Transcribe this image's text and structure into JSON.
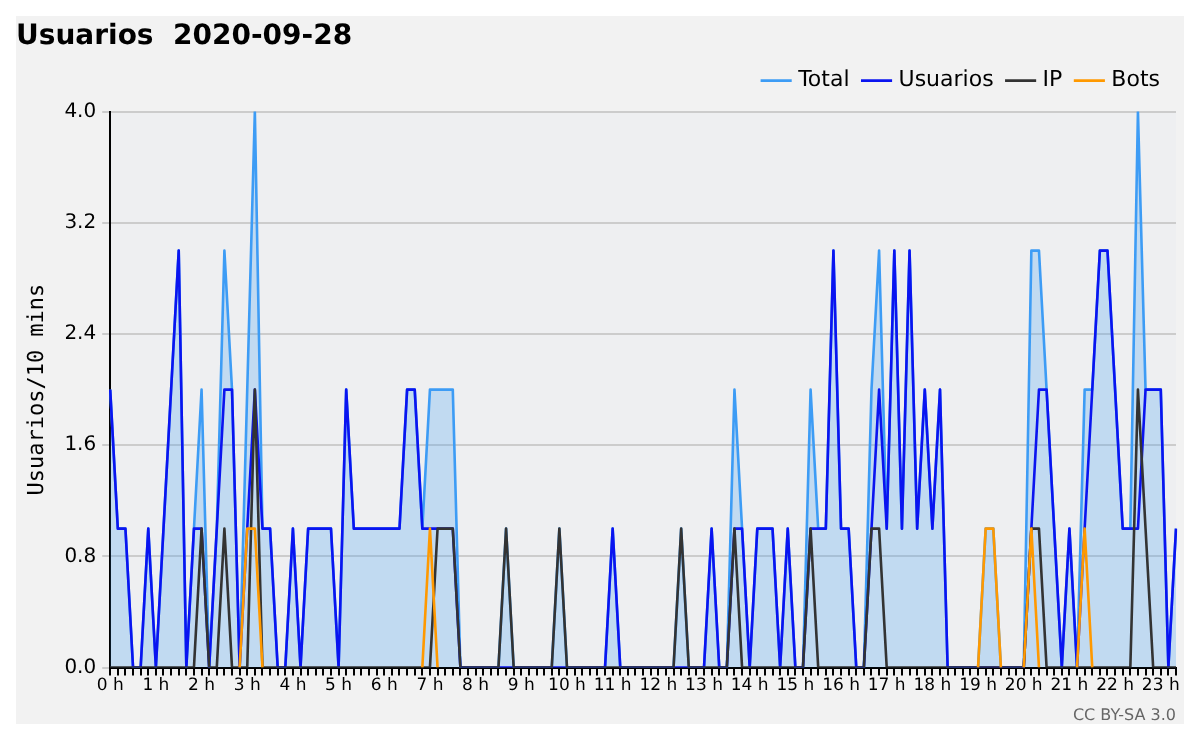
{
  "chart_data": {
    "type": "line",
    "title": "Usuarios  2020-09-28",
    "ylabel": "Usuarios/10 mins",
    "categories": [
      "0 h",
      null,
      null,
      null,
      null,
      null,
      "1 h",
      null,
      null,
      null,
      null,
      null,
      "2 h",
      null,
      null,
      null,
      null,
      null,
      "3 h",
      null,
      null,
      null,
      null,
      null,
      "4 h",
      null,
      null,
      null,
      null,
      null,
      "5 h",
      null,
      null,
      null,
      null,
      null,
      "6 h",
      null,
      null,
      null,
      null,
      null,
      "7 h",
      null,
      null,
      null,
      null,
      null,
      "8 h",
      null,
      null,
      null,
      null,
      null,
      "9 h",
      null,
      null,
      null,
      null,
      null,
      "10 h",
      null,
      null,
      null,
      null,
      null,
      "11 h",
      null,
      null,
      null,
      null,
      null,
      "12 h",
      null,
      null,
      null,
      null,
      null,
      "13 h",
      null,
      null,
      null,
      null,
      null,
      "14 h",
      null,
      null,
      null,
      null,
      null,
      "15 h",
      null,
      null,
      null,
      null,
      null,
      "16 h",
      null,
      null,
      null,
      null,
      null,
      "17 h",
      null,
      null,
      null,
      null,
      null,
      "18 h",
      null,
      null,
      null,
      null,
      null,
      "19 h",
      null,
      null,
      null,
      null,
      null,
      "20 h",
      null,
      null,
      null,
      null,
      null,
      "21 h",
      null,
      null,
      null,
      null,
      null,
      "22 h",
      null,
      null,
      null,
      null,
      null,
      "23 h",
      null,
      null
    ],
    "series": [
      {
        "name": "Total",
        "type": "area",
        "color": "#3d9cf5",
        "values": [
          2,
          1,
          1,
          0,
          0,
          1,
          0,
          1,
          2,
          3,
          0,
          1,
          2,
          0,
          1,
          3,
          2,
          0,
          2,
          4,
          1,
          1,
          0,
          0,
          1,
          0,
          1,
          1,
          1,
          1,
          0,
          2,
          1,
          1,
          1,
          1,
          1,
          1,
          1,
          2,
          2,
          1,
          2,
          2,
          2,
          2,
          0,
          0,
          0,
          0,
          0,
          0,
          1,
          0,
          0,
          0,
          0,
          0,
          0,
          1,
          0,
          0,
          0,
          0,
          0,
          0,
          1,
          0,
          0,
          0,
          0,
          0,
          0,
          0,
          0,
          1,
          0,
          0,
          0,
          1,
          0,
          0,
          2,
          1,
          0,
          1,
          1,
          1,
          0,
          1,
          0,
          0,
          2,
          1,
          1,
          3,
          1,
          1,
          0,
          0,
          2,
          3,
          1,
          3,
          1,
          3,
          1,
          2,
          1,
          2,
          0,
          0,
          0,
          0,
          0,
          1,
          1,
          0,
          0,
          0,
          0,
          3,
          3,
          2,
          1,
          0,
          1,
          0,
          2,
          2,
          3,
          3,
          2,
          1,
          1,
          4,
          2,
          2,
          2,
          0,
          1
        ]
      },
      {
        "name": "Usuarios",
        "color": "#0a14f0",
        "values": [
          2,
          1,
          1,
          0,
          0,
          1,
          0,
          1,
          2,
          3,
          0,
          1,
          1,
          0,
          1,
          2,
          2,
          0,
          1,
          2,
          1,
          1,
          0,
          0,
          1,
          0,
          1,
          1,
          1,
          1,
          0,
          2,
          1,
          1,
          1,
          1,
          1,
          1,
          1,
          2,
          2,
          1,
          1,
          1,
          1,
          1,
          0,
          0,
          0,
          0,
          0,
          0,
          0,
          0,
          0,
          0,
          0,
          0,
          0,
          0,
          0,
          0,
          0,
          0,
          0,
          0,
          1,
          0,
          0,
          0,
          0,
          0,
          0,
          0,
          0,
          0,
          0,
          0,
          0,
          1,
          0,
          0,
          1,
          1,
          0,
          1,
          1,
          1,
          0,
          1,
          0,
          0,
          1,
          1,
          1,
          3,
          1,
          1,
          0,
          0,
          1,
          2,
          1,
          3,
          1,
          3,
          1,
          2,
          1,
          2,
          0,
          0,
          0,
          0,
          0,
          0,
          0,
          0,
          0,
          0,
          0,
          1,
          2,
          2,
          1,
          0,
          1,
          0,
          1,
          2,
          3,
          3,
          2,
          1,
          1,
          1,
          2,
          2,
          2,
          0,
          1
        ]
      },
      {
        "name": "IP",
        "color": "#333333",
        "values": [
          0,
          0,
          0,
          0,
          0,
          0,
          0,
          0,
          0,
          0,
          0,
          0,
          1,
          0,
          0,
          1,
          0,
          0,
          0,
          2,
          0,
          0,
          0,
          0,
          0,
          0,
          0,
          0,
          0,
          0,
          0,
          0,
          0,
          0,
          0,
          0,
          0,
          0,
          0,
          0,
          0,
          0,
          0,
          1,
          1,
          1,
          0,
          0,
          0,
          0,
          0,
          0,
          1,
          0,
          0,
          0,
          0,
          0,
          0,
          1,
          0,
          0,
          0,
          0,
          0,
          0,
          0,
          0,
          0,
          0,
          0,
          0,
          0,
          0,
          0,
          1,
          0,
          0,
          0,
          0,
          0,
          0,
          1,
          0,
          0,
          0,
          0,
          0,
          0,
          0,
          0,
          0,
          1,
          0,
          0,
          0,
          0,
          0,
          0,
          0,
          1,
          1,
          0,
          0,
          0,
          0,
          0,
          0,
          0,
          0,
          0,
          0,
          0,
          0,
          0,
          0,
          0,
          0,
          0,
          0,
          0,
          1,
          1,
          0,
          0,
          0,
          0,
          0,
          0,
          0,
          0,
          0,
          0,
          0,
          0,
          2,
          1,
          0,
          0,
          0,
          0
        ]
      },
      {
        "name": "Bots",
        "color": "#ff9900",
        "values": [
          null,
          null,
          null,
          null,
          null,
          null,
          null,
          null,
          null,
          null,
          null,
          null,
          null,
          null,
          null,
          null,
          null,
          0,
          1,
          1,
          0,
          null,
          null,
          null,
          null,
          null,
          null,
          null,
          null,
          null,
          null,
          null,
          null,
          null,
          null,
          null,
          null,
          null,
          null,
          null,
          null,
          0,
          1,
          0,
          null,
          null,
          null,
          null,
          null,
          null,
          null,
          null,
          null,
          null,
          null,
          null,
          null,
          null,
          null,
          null,
          null,
          null,
          null,
          null,
          null,
          null,
          null,
          null,
          null,
          null,
          null,
          null,
          null,
          null,
          null,
          null,
          null,
          null,
          null,
          null,
          null,
          null,
          null,
          null,
          null,
          null,
          null,
          null,
          null,
          null,
          null,
          null,
          null,
          null,
          null,
          null,
          null,
          null,
          null,
          null,
          null,
          null,
          null,
          null,
          null,
          null,
          null,
          null,
          null,
          null,
          null,
          null,
          null,
          null,
          0,
          1,
          1,
          0,
          null,
          null,
          0,
          1,
          0,
          null,
          null,
          null,
          null,
          0,
          1,
          0,
          null,
          null,
          null,
          null,
          null,
          null,
          null,
          null,
          null,
          null,
          null
        ]
      }
    ],
    "ylim": [
      0,
      4
    ],
    "yticks": [
      {
        "value": 0,
        "label": "0.0"
      },
      {
        "value": 0.8,
        "label": "0.8"
      },
      {
        "value": 1.6,
        "label": "1.6"
      },
      {
        "value": 2.4,
        "label": "2.4"
      },
      {
        "value": 3.2,
        "label": "3.2"
      },
      {
        "value": 4,
        "label": "4.0"
      }
    ],
    "grid": "y",
    "legend": "top right",
    "marker": "none",
    "annotations": [
      "CC BY-SA 3.0"
    ]
  }
}
